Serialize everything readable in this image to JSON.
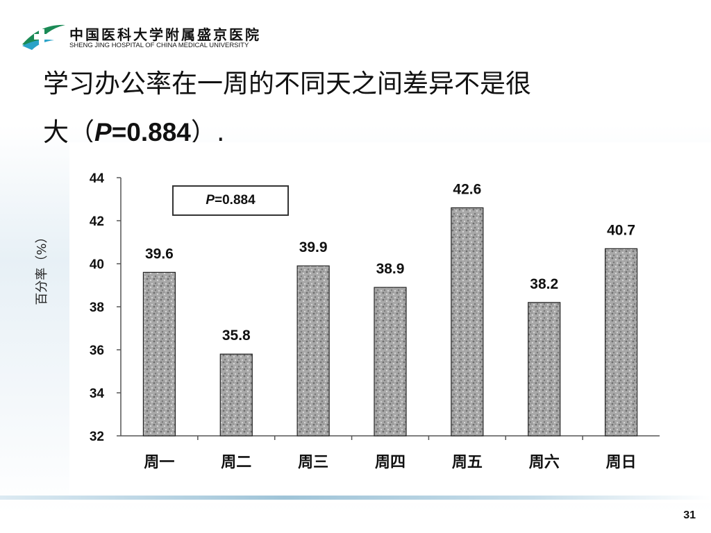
{
  "header": {
    "logo_cn": "中国医科大学附属盛京医院",
    "logo_en": "SHENG JING HOSPITAL OF CHINA MEDICAL UNIVERSITY"
  },
  "slide": {
    "title_line1": "学习办公率在一周的不同天之间差异不是很",
    "title_line2_prefix": "大（",
    "title_p": "P",
    "title_p_value": "=0.884",
    "title_suffix": "）."
  },
  "chart_data": {
    "type": "bar",
    "categories": [
      "周一",
      "周二",
      "周三",
      "周四",
      "周五",
      "周六",
      "周日"
    ],
    "values": [
      39.6,
      35.8,
      39.9,
      38.9,
      42.6,
      38.2,
      40.7
    ],
    "value_labels": [
      "39.6",
      "35.8",
      "39.9",
      "38.9",
      "42.6",
      "38.2",
      "40.7"
    ],
    "title": "",
    "xlabel": "",
    "ylabel": "百分率（%）",
    "ylim": [
      32,
      44
    ],
    "yticks": [
      "32",
      "34",
      "36",
      "38",
      "40",
      "42",
      "44"
    ],
    "annotation_p": "P",
    "annotation_value": "=0.884",
    "grid": false,
    "bar_fill": "#9a9a9a"
  },
  "footer": {
    "page_number": "31"
  }
}
